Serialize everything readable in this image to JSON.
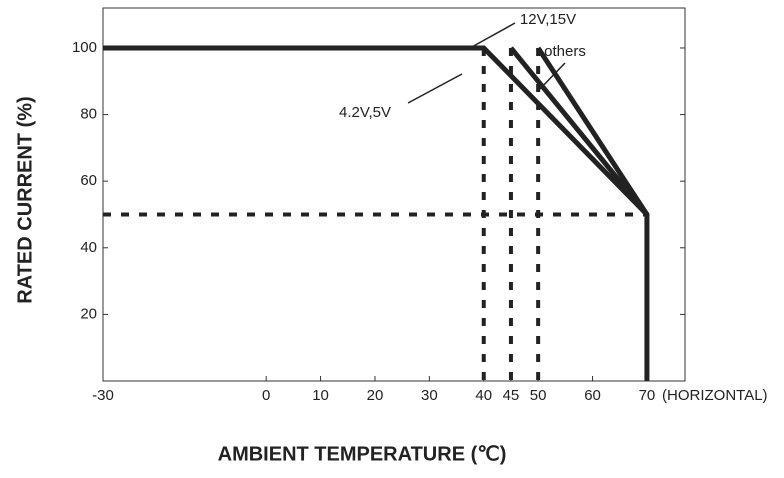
{
  "chart_data": {
    "type": "line",
    "x_label": "AMBIENT TEMPERATURE (℃)",
    "y_label": "RATED CURRENT (%)",
    "x_axis_note": "(HORIZONTAL)",
    "xlim": [
      -30,
      77
    ],
    "ylim": [
      0,
      112
    ],
    "xticks": [
      -30,
      0,
      10,
      20,
      30,
      40,
      45,
      50,
      60,
      70
    ],
    "yticks": [
      20,
      40,
      60,
      80,
      100
    ],
    "reference_lines": {
      "x": [
        40,
        45,
        50
      ],
      "y": [
        50
      ]
    },
    "series": [
      {
        "name": "4.2V,5V",
        "color": "#222222",
        "x": [
          -30,
          40,
          70,
          70
        ],
        "values": [
          100,
          100,
          50,
          0
        ]
      },
      {
        "name": "12V,15V",
        "color": "#222222",
        "x": [
          45,
          70
        ],
        "values": [
          100,
          50
        ]
      },
      {
        "name": "others",
        "color": "#222222",
        "x": [
          50,
          70
        ],
        "values": [
          100,
          50
        ]
      }
    ]
  }
}
